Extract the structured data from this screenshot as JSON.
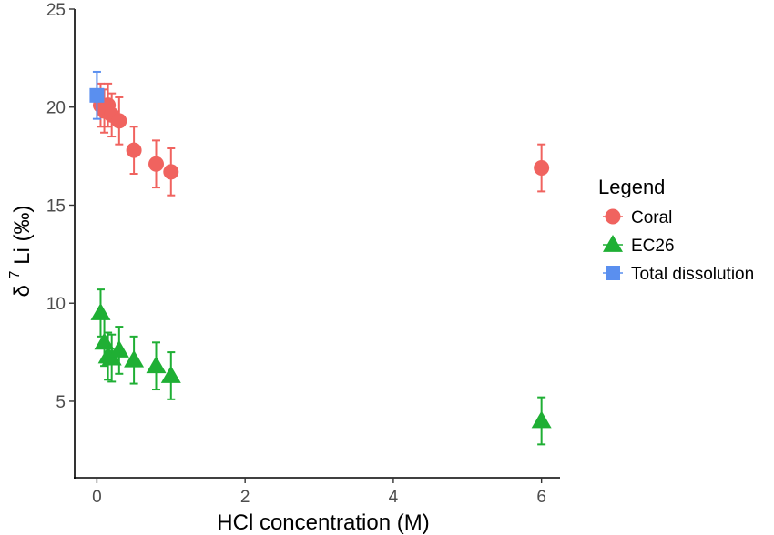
{
  "chart_data": {
    "type": "scatter",
    "title": "",
    "xlabel": "HCl concentration (M)",
    "ylabel": {
      "prefix": "δ",
      "sup": "7",
      "suffix": "Li (‰)"
    },
    "xlim": [
      -0.3,
      6.25
    ],
    "ylim": [
      1.1,
      25
    ],
    "xticks": [
      0,
      2,
      4,
      6
    ],
    "yticks": [
      5,
      10,
      15,
      20,
      25
    ],
    "grid": false,
    "legend": {
      "title": "Legend",
      "position": "right"
    },
    "series": [
      {
        "name": "Coral",
        "marker": "circle",
        "color": "#F0635F",
        "points": [
          {
            "x": 0.05,
            "y": 20.1,
            "err": 1.1
          },
          {
            "x": 0.1,
            "y": 19.8,
            "err": 1.1
          },
          {
            "x": 0.15,
            "y": 20.1,
            "err": 1.1
          },
          {
            "x": 0.2,
            "y": 19.6,
            "err": 1.1
          },
          {
            "x": 0.3,
            "y": 19.3,
            "err": 1.2
          },
          {
            "x": 0.5,
            "y": 17.8,
            "err": 1.2
          },
          {
            "x": 0.8,
            "y": 17.1,
            "err": 1.2
          },
          {
            "x": 1.0,
            "y": 16.7,
            "err": 1.2
          },
          {
            "x": 6.0,
            "y": 16.9,
            "err": 1.2
          }
        ]
      },
      {
        "name": "EC26",
        "marker": "triangle",
        "color": "#1FAF34",
        "points": [
          {
            "x": 0.05,
            "y": 9.5,
            "err": 1.2
          },
          {
            "x": 0.1,
            "y": 8.0,
            "err": 1.2
          },
          {
            "x": 0.15,
            "y": 7.3,
            "err": 1.2
          },
          {
            "x": 0.2,
            "y": 7.2,
            "err": 1.2
          },
          {
            "x": 0.3,
            "y": 7.6,
            "err": 1.2
          },
          {
            "x": 0.5,
            "y": 7.1,
            "err": 1.2
          },
          {
            "x": 0.8,
            "y": 6.8,
            "err": 1.2
          },
          {
            "x": 1.0,
            "y": 6.3,
            "err": 1.2
          },
          {
            "x": 6.0,
            "y": 4.0,
            "err": 1.2
          }
        ]
      },
      {
        "name": "Total dissolution",
        "marker": "square",
        "color": "#5A8FEF",
        "points": [
          {
            "x": 0.0,
            "y": 20.6,
            "err": 1.2
          }
        ]
      }
    ]
  }
}
